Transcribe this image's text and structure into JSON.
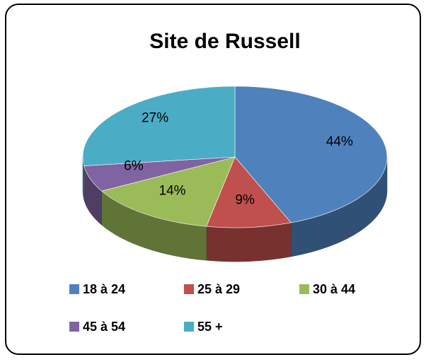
{
  "chart_data": {
    "type": "pie3d",
    "title": "Site de Russell",
    "categories": [
      "18 à 24",
      "25 à 29",
      "30 à 44",
      "45 à 54",
      "55 +"
    ],
    "values": [
      44,
      9,
      14,
      6,
      27
    ],
    "value_labels": [
      "44%",
      "9%",
      "14%",
      "6%",
      "27%"
    ],
    "colors": [
      "#4f81bd",
      "#c0504d",
      "#9bbb59",
      "#8064a2",
      "#4bacc6"
    ],
    "legend": "bottom"
  }
}
